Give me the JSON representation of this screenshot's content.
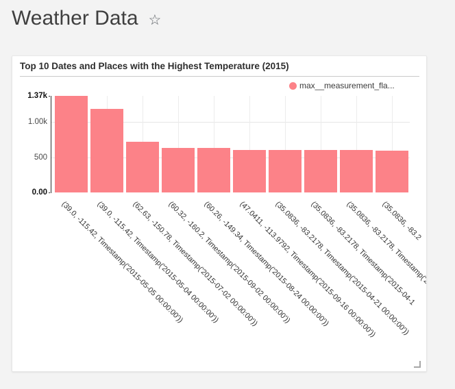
{
  "page": {
    "title": "Weather Data",
    "star_icon": "☆"
  },
  "card": {
    "title": "Top 10 Dates and Places with the Highest Temperature (2015)"
  },
  "chart_data": {
    "type": "bar",
    "title": "Top 10 Dates and Places with the Highest Temperature (2015)",
    "legend_label": "max__measurement_fla...",
    "legend_position": "top-right",
    "bar_color": "#fc8288",
    "grid": true,
    "ylim": [
      0,
      1370
    ],
    "y_ticks": [
      {
        "label": "1.37k",
        "value": 1370,
        "emph": true
      },
      {
        "label": "1.00k",
        "value": 1000,
        "emph": false
      },
      {
        "label": "500",
        "value": 500,
        "emph": false
      },
      {
        "label": "0.00",
        "value": 0,
        "emph": true
      }
    ],
    "y_gridline_values": [
      1000,
      500
    ],
    "categories": [
      "(39.0, -115.42, Timestamp('2015-05-05 00:00:00'))",
      "(39.0, -115.42, Timestamp('2015-05-04 00:00:00'))",
      "(62.63, -150.78, Timestamp('2015-07-02 00:00:00'))",
      "(60.32, -160.2, Timestamp('2015-09-02 00:00:00'))",
      "(60.26, -149.34, Timestamp('2015-08-24 00:00:00'))",
      "(47.0411, -113.9792, Timestamp('2015-09-16 00:00:00'))",
      "(35.0836, -83.2178, Timestamp('2015-04-21 00:00:00'))",
      "(35.0836, -83.2178, Timestamp('2015-04-1",
      "(35.0836, -83.2178, Timestamp('20",
      "(35.0836, -83.2"
    ],
    "values": [
      1370,
      1190,
      720,
      635,
      630,
      600,
      600,
      600,
      600,
      595
    ],
    "xlabel": "",
    "ylabel": ""
  }
}
